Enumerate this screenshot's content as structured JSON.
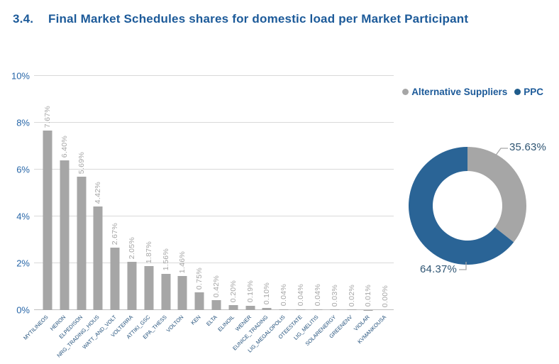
{
  "heading": {
    "number": "3.4.",
    "text": "Final Market Schedules shares for domestic load per Market Participant"
  },
  "colors": {
    "title_blue": "#1C5A99",
    "axis_label_blue": "#2766A8",
    "x_label_navy": "#1F4E79",
    "bar_gray": "#A6A6A6",
    "ppc_blue": "#2A6496",
    "gridline_gray": "#D9D9D9"
  },
  "legend": {
    "items": [
      {
        "label": "Alternative Suppliers",
        "color": "#A6A6A6"
      },
      {
        "label": "PPC",
        "color": "#1F5C8B"
      }
    ]
  },
  "chart_data": [
    {
      "type": "bar",
      "title": "Final Market Schedules shares for domestic load per Market Participant",
      "categories": [
        "MYTILINEOS",
        "HERON",
        "ELPEDISON",
        "NRG_TRADING_HOUS",
        "WATT_AND_VOLT",
        "VOLTERRA",
        "ATTIKI_GSC",
        "EPA_THESS",
        "VOLTON",
        "KEN",
        "ELTA",
        "ELINOIL",
        "WENER",
        "EUNICE_TRADING",
        "LIG_MEGALOPOLIS",
        "OTEESTATE",
        "LIG_MELITIS",
        "SOLARENERGY",
        "GREENENV",
        "VIOLAR",
        "KVMANKOUSA"
      ],
      "values": [
        7.67,
        6.4,
        5.69,
        4.42,
        2.67,
        2.05,
        1.87,
        1.56,
        1.46,
        0.75,
        0.42,
        0.2,
        0.19,
        0.1,
        0.04,
        0.04,
        0.04,
        0.03,
        0.02,
        0.01,
        0.0
      ],
      "value_labels": [
        "7.67%",
        "6.40%",
        "5.69%",
        "4.42%",
        "2.67%",
        "2.05%",
        "1.87%",
        "1.56%",
        "1.46%",
        "0.75%",
        "0.42%",
        "0.20%",
        "0.19%",
        "0.10%",
        "0.04%",
        "0.04%",
        "0.04%",
        "0.03%",
        "0.02%",
        "0.01%",
        "0.00%"
      ],
      "xlabel": "",
      "ylabel": "",
      "ylim": [
        0,
        10
      ],
      "yticks": [
        "0%",
        "2%",
        "4%",
        "6%",
        "8%",
        "10%"
      ],
      "grid": true,
      "bar_color": "#A6A6A6",
      "legend_position": "top-right"
    },
    {
      "type": "pie",
      "donut": true,
      "slices": [
        {
          "name": "Alternative Suppliers",
          "value": 35.63,
          "label": "35.63%",
          "color": "#A6A6A6"
        },
        {
          "name": "PPC",
          "value": 64.37,
          "label": "64.37%",
          "color": "#2A6496"
        }
      ]
    }
  ]
}
